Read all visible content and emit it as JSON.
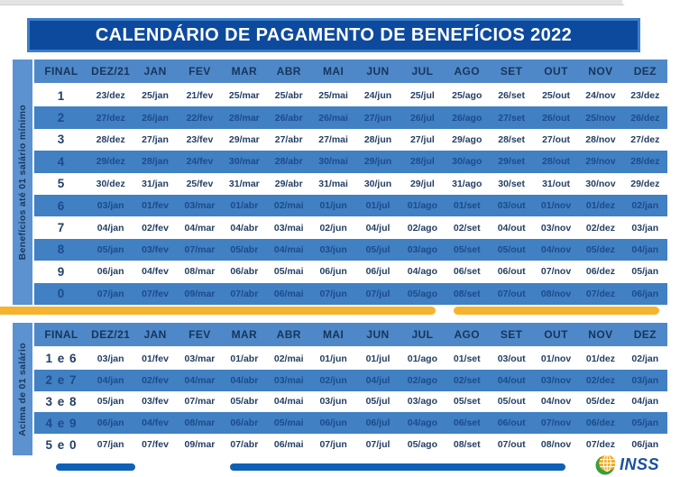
{
  "title": "CALENDÁRIO DE PAGAMENTO DE BENEFÍCIOS 2022",
  "columns": [
    "FINAL",
    "DEZ/21",
    "JAN",
    "FEV",
    "MAR",
    "ABR",
    "MAI",
    "JUN",
    "JUL",
    "AGO",
    "SET",
    "OUT",
    "NOV",
    "DEZ"
  ],
  "tables": [
    {
      "side_label": "Benefícios até 01 salário mínimo",
      "rows": [
        {
          "final": "1",
          "dates": [
            "23/dez",
            "25/jan",
            "21/fev",
            "25/mar",
            "25/abr",
            "25/mai",
            "24/jun",
            "25/jul",
            "25/ago",
            "26/set",
            "25/out",
            "24/nov",
            "23/dez"
          ]
        },
        {
          "final": "2",
          "dates": [
            "27/dez",
            "26/jan",
            "22/fev",
            "28/mar",
            "26/abr",
            "26/mai",
            "27/jun",
            "26/jul",
            "26/ago",
            "27/set",
            "26/out",
            "25/nov",
            "26/dez"
          ]
        },
        {
          "final": "3",
          "dates": [
            "28/dez",
            "27/jan",
            "23/fev",
            "29/mar",
            "27/abr",
            "27/mai",
            "28/jun",
            "27/jul",
            "29/ago",
            "28/set",
            "27/out",
            "28/nov",
            "27/dez"
          ]
        },
        {
          "final": "4",
          "dates": [
            "29/dez",
            "28/jan",
            "24/fev",
            "30/mar",
            "28/abr",
            "30/mai",
            "29/jun",
            "28/jul",
            "30/ago",
            "29/set",
            "28/out",
            "29/nov",
            "28/dez"
          ]
        },
        {
          "final": "5",
          "dates": [
            "30/dez",
            "31/jan",
            "25/fev",
            "31/mar",
            "29/abr",
            "31/mai",
            "30/jun",
            "29/jul",
            "31/ago",
            "30/set",
            "31/out",
            "30/nov",
            "29/dez"
          ]
        },
        {
          "final": "6",
          "dates": [
            "03/jan",
            "01/fev",
            "03/mar",
            "01/abr",
            "02/mai",
            "01/jun",
            "01/jul",
            "01/ago",
            "01/set",
            "03/out",
            "01/nov",
            "01/dez",
            "02/jan"
          ]
        },
        {
          "final": "7",
          "dates": [
            "04/jan",
            "02/fev",
            "04/mar",
            "04/abr",
            "03/mai",
            "02/jun",
            "04/jul",
            "02/ago",
            "02/set",
            "04/out",
            "03/nov",
            "02/dez",
            "03/jan"
          ]
        },
        {
          "final": "8",
          "dates": [
            "05/jan",
            "03/fev",
            "07/mar",
            "05/abr",
            "04/mai",
            "03/jun",
            "05/jul",
            "03/ago",
            "05/set",
            "05/out",
            "04/nov",
            "05/dez",
            "04/jan"
          ]
        },
        {
          "final": "9",
          "dates": [
            "06/jan",
            "04/fev",
            "08/mar",
            "06/abr",
            "05/mai",
            "06/jun",
            "06/jul",
            "04/ago",
            "06/set",
            "06/out",
            "07/nov",
            "06/dez",
            "05/jan"
          ]
        },
        {
          "final": "0",
          "dates": [
            "07/jan",
            "07/fev",
            "09/mar",
            "07/abr",
            "06/mai",
            "07/jun",
            "07/jul",
            "05/ago",
            "08/set",
            "07/out",
            "08/nov",
            "07/dez",
            "06/jan"
          ]
        }
      ]
    },
    {
      "side_label": "Acima de 01 salário",
      "rows": [
        {
          "final": "1 e 6",
          "dates": [
            "03/jan",
            "01/fev",
            "03/mar",
            "01/abr",
            "02/mai",
            "01/jun",
            "01/jul",
            "01/ago",
            "01/set",
            "03/out",
            "01/nov",
            "01/dez",
            "02/jan"
          ]
        },
        {
          "final": "2 e 7",
          "dates": [
            "04/jan",
            "02/fev",
            "04/mar",
            "04/abr",
            "03/mai",
            "02/jun",
            "04/jul",
            "02/ago",
            "02/set",
            "04/out",
            "03/nov",
            "02/dez",
            "03/jan"
          ]
        },
        {
          "final": "3 e 8",
          "dates": [
            "05/jan",
            "03/fev",
            "07/mar",
            "05/abr",
            "04/mai",
            "03/jun",
            "05/jul",
            "03/ago",
            "05/set",
            "05/out",
            "04/nov",
            "05/dez",
            "04/jan"
          ]
        },
        {
          "final": "4 e 9",
          "dates": [
            "06/jan",
            "04/fev",
            "08/mar",
            "06/abr",
            "05/mai",
            "06/jun",
            "06/jul",
            "04/ago",
            "06/set",
            "06/out",
            "07/nov",
            "06/dez",
            "05/jan"
          ]
        },
        {
          "final": "5 e 0",
          "dates": [
            "07/jan",
            "07/fev",
            "09/mar",
            "07/abr",
            "06/mai",
            "07/jun",
            "07/jul",
            "05/ago",
            "08/set",
            "07/out",
            "08/nov",
            "07/dez",
            "06/jan"
          ]
        }
      ]
    }
  ],
  "footer": {
    "logo_text": "INSS"
  },
  "colors": {
    "title_bar": "#0d4a9e",
    "title_border": "#3c7ec9",
    "header_blue": "#4e88c8",
    "row_blue": "#4080c3",
    "side_bar_blue": "#5b92cf",
    "divider_yellow": "#f6b42e",
    "footer_bar_blue": "#1160b7",
    "inss_blue": "#1b4fa1",
    "text_dark_navy": "#233f63"
  }
}
